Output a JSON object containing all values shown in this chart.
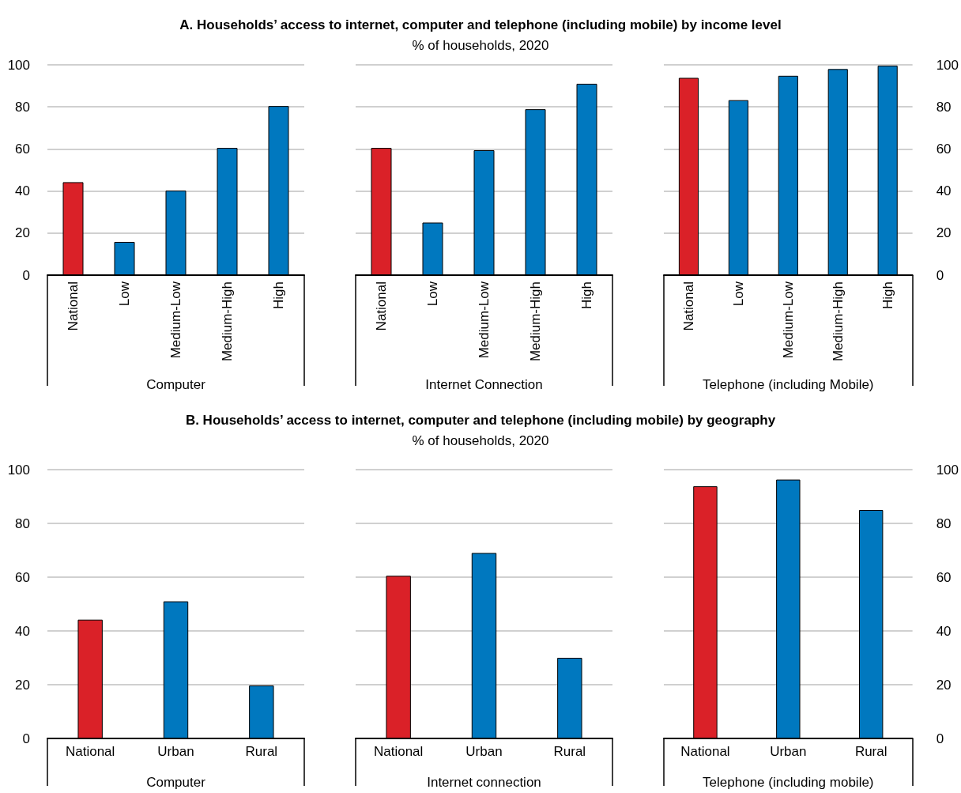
{
  "chart_data": [
    {
      "type": "bar",
      "title": "A. Households’ access to internet, computer and telephone (including mobile) by income level",
      "subtitle": "% of households, 2020",
      "categories": [
        "National",
        "Low",
        "Medium-Low",
        "Medium-High",
        "High",
        "National",
        "Low",
        "Medium-Low",
        "Medium-High",
        "High",
        "National",
        "Low",
        "Medium-Low",
        "Medium-High",
        "High"
      ],
      "series": [
        {
          "values": [
            44.2,
            15.8,
            40.2,
            60.5,
            80.4,
            null,
            null,
            null,
            null,
            null,
            null,
            null,
            null,
            null,
            null
          ],
          "colors": [
            "#da2128",
            "#0078bf",
            "#0078bf",
            "#0078bf",
            "#0078bf",
            null,
            null,
            null,
            null,
            null,
            null,
            null,
            null,
            null,
            null
          ]
        },
        {
          "values": [
            null,
            null,
            null,
            null,
            null,
            60.5,
            25,
            59.4,
            78.9,
            91,
            null,
            null,
            null,
            null,
            null
          ],
          "colors": [
            null,
            null,
            null,
            null,
            null,
            "#da2128",
            "#0078bf",
            "#0078bf",
            "#0078bf",
            "#0078bf",
            null,
            null,
            null,
            null,
            null
          ]
        },
        {
          "values": [
            null,
            null,
            null,
            null,
            null,
            null,
            null,
            null,
            null,
            null,
            93.8,
            83.2,
            94.8,
            98,
            99.6
          ],
          "colors": [
            null,
            null,
            null,
            null,
            null,
            null,
            null,
            null,
            null,
            null,
            "#da2128",
            "#0078bf",
            "#0078bf",
            "#0078bf",
            "#0078bf"
          ]
        }
      ],
      "annotations": [
        "Computer",
        "Internet Connection",
        "Telephone (including Mobile)"
      ],
      "ylim": [
        0,
        100
      ],
      "yticks": [
        0,
        20,
        40,
        60,
        80,
        100
      ],
      "y2lim": [
        0,
        100
      ],
      "y2ticks": [
        0,
        20,
        40,
        60,
        80,
        100
      ],
      "grid": "y"
    },
    {
      "type": "bar",
      "title": "B. Households’ access to internet, computer and telephone (including mobile) by geography",
      "subtitle": "% of households, 2020",
      "categories": [
        "National",
        "Urban",
        "Rural",
        "National",
        "Urban",
        "Rural",
        "National",
        "Urban",
        "Rural"
      ],
      "series": [
        {
          "values": [
            44.2,
            51,
            19.7,
            null,
            null,
            null,
            null,
            null,
            null
          ],
          "colors": [
            "#da2128",
            "#0078bf",
            "#0078bf",
            null,
            null,
            null,
            null,
            null,
            null
          ]
        },
        {
          "values": [
            null,
            null,
            null,
            60.5,
            69,
            30,
            null,
            null,
            null
          ],
          "colors": [
            null,
            null,
            null,
            "#da2128",
            "#0078bf",
            "#0078bf",
            null,
            null,
            null
          ]
        },
        {
          "values": [
            null,
            null,
            null,
            null,
            null,
            null,
            93.8,
            96.3,
            85
          ],
          "colors": [
            null,
            null,
            null,
            null,
            null,
            null,
            "#da2128",
            "#0078bf",
            "#0078bf"
          ]
        }
      ],
      "annotations": [
        "Computer",
        "Internet connection",
        "Telephone (including mobile)"
      ],
      "ylim": [
        0,
        100
      ],
      "yticks": [
        0,
        20,
        40,
        60,
        80,
        100
      ],
      "y2lim": [
        0,
        100
      ],
      "y2ticks": [
        0,
        20,
        40,
        60,
        80,
        100
      ],
      "grid": "y"
    }
  ]
}
